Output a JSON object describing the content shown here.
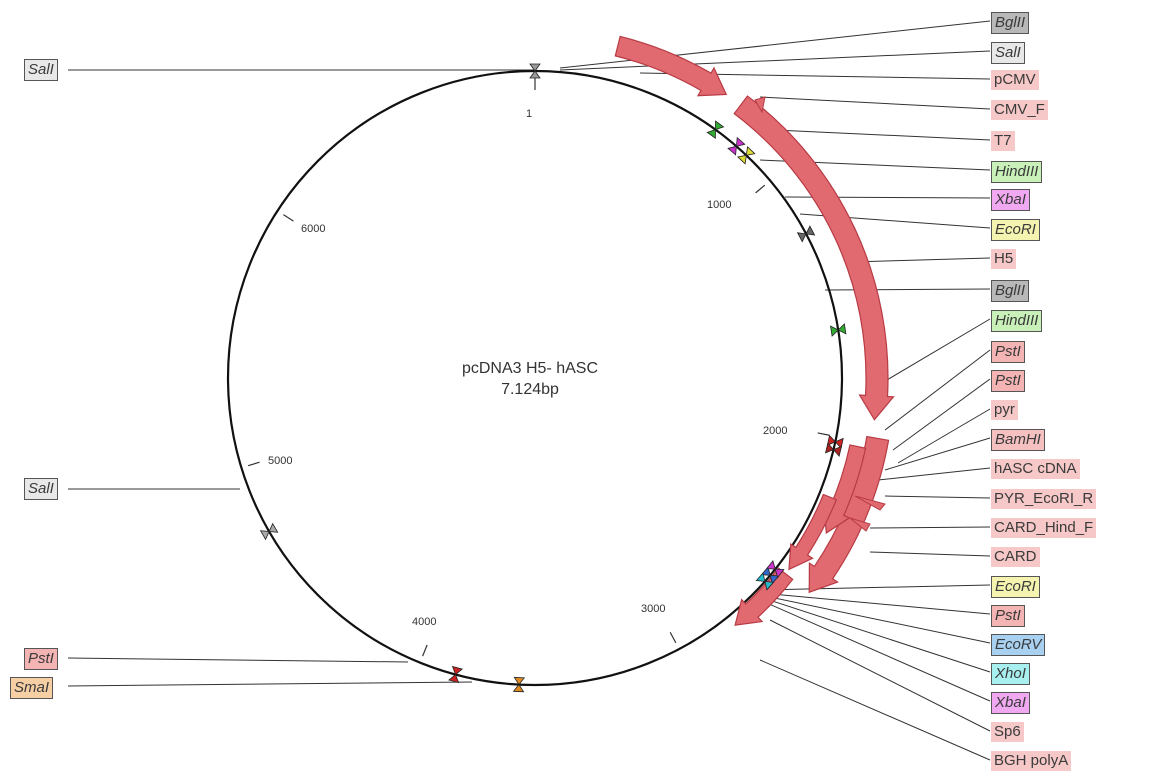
{
  "plasmid": {
    "name": "pcDNA3 H5- hASC",
    "size": "7.124bp"
  },
  "ticks": [
    "1",
    "1000",
    "2000",
    "3000",
    "4000",
    "5000",
    "6000"
  ],
  "left_labels": [
    {
      "text": "SalI",
      "type": "enzyme",
      "color": "#e8e8e8"
    },
    {
      "text": "SalI",
      "type": "enzyme",
      "color": "#e8e8e8"
    },
    {
      "text": "PstI",
      "type": "enzyme",
      "color": "#f4b4b4"
    },
    {
      "text": "SmaI",
      "type": "enzyme",
      "color": "#f6cfa4"
    }
  ],
  "right_labels": [
    {
      "text": "BglII",
      "type": "enzyme",
      "color": "#b8b8b8"
    },
    {
      "text": "SalI",
      "type": "enzyme",
      "color": "#e8e8e8"
    },
    {
      "text": "pCMV",
      "type": "feature",
      "color": "#f6c8c8"
    },
    {
      "text": "CMV_F",
      "type": "feature",
      "color": "#f6c8c8"
    },
    {
      "text": "T7",
      "type": "feature",
      "color": "#f6c8c8"
    },
    {
      "text": "HindIII",
      "type": "enzyme",
      "color": "#c8f0b8"
    },
    {
      "text": "XbaI",
      "type": "enzyme",
      "color": "#f0a8f0"
    },
    {
      "text": "EcoRI",
      "type": "enzyme",
      "color": "#f4f4b0"
    },
    {
      "text": "H5",
      "type": "feature",
      "color": "#f6c8c8"
    },
    {
      "text": "BglII",
      "type": "enzyme",
      "color": "#b8b8b8"
    },
    {
      "text": "HindIII",
      "type": "enzyme",
      "color": "#c8f0b8"
    },
    {
      "text": "PstI",
      "type": "enzyme",
      "color": "#f4b4b4"
    },
    {
      "text": "PstI",
      "type": "enzyme",
      "color": "#f4b4b4"
    },
    {
      "text": "pyr",
      "type": "feature",
      "color": "#f6c8c8"
    },
    {
      "text": "BamHI",
      "type": "enzyme",
      "color": "#f4c0c0"
    },
    {
      "text": "hASC cDNA",
      "type": "feature",
      "color": "#f6c8c8"
    },
    {
      "text": "PYR_EcoRI_R",
      "type": "feature",
      "color": "#f6c8c8"
    },
    {
      "text": "CARD_Hind_F",
      "type": "feature",
      "color": "#f6c8c8"
    },
    {
      "text": "CARD",
      "type": "feature",
      "color": "#f6c8c8"
    },
    {
      "text": "EcoRI",
      "type": "enzyme",
      "color": "#f4f4b0"
    },
    {
      "text": "PstI",
      "type": "enzyme",
      "color": "#f4b4b4"
    },
    {
      "text": "EcoRV",
      "type": "enzyme",
      "color": "#a8d0f0"
    },
    {
      "text": "XhoI",
      "type": "enzyme",
      "color": "#a8f0f0"
    },
    {
      "text": "XbaI",
      "type": "enzyme",
      "color": "#f0a8f0"
    },
    {
      "text": "Sp6",
      "type": "feature",
      "color": "#f6c8c8"
    },
    {
      "text": "BGH polyA",
      "type": "feature",
      "color": "#f6c8c8"
    }
  ],
  "colors": {
    "arrow_fill": "#e06a70",
    "arrow_stroke": "#b83a44",
    "circle": "#111111"
  }
}
